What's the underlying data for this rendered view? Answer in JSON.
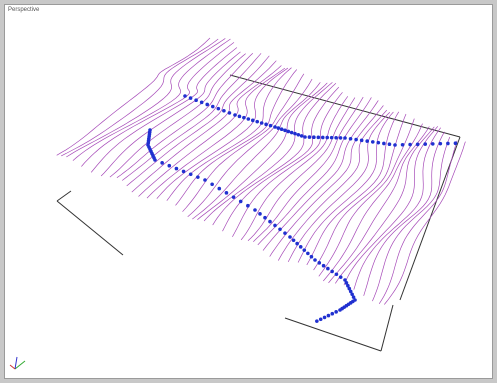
{
  "viewport": {
    "label": "Perspective"
  }
}
